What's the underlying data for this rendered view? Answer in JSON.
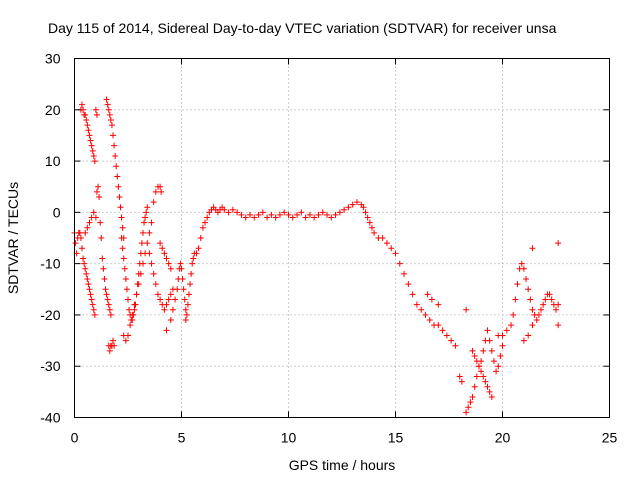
{
  "chart_data": {
    "type": "scatter",
    "title": "Day 115 of 2014, Sidereal Day-to-day VTEC variation (SDTVAR) for receiver unsa",
    "xlabel": "GPS time / hours",
    "ylabel": "SDTVAR / TECUs",
    "xlim": [
      0,
      25
    ],
    "ylim": [
      -40,
      30
    ],
    "xticks": [
      "0",
      "5",
      "10",
      "15",
      "20",
      "25"
    ],
    "yticks": [
      "-40",
      "-30",
      "-20",
      "-10",
      "0",
      "10",
      "20",
      "30"
    ],
    "grid": true,
    "marker": "+",
    "color": "#ff0000",
    "series": [
      {
        "name": "SDTVAR",
        "points": [
          [
            0.0,
            -4
          ],
          [
            0.05,
            -6
          ],
          [
            0.1,
            -8
          ],
          [
            0.15,
            -5
          ],
          [
            0.2,
            -4
          ],
          [
            0.25,
            -4
          ],
          [
            0.3,
            -5
          ],
          [
            0.35,
            -7
          ],
          [
            0.4,
            -9
          ],
          [
            0.45,
            -10
          ],
          [
            0.5,
            -11
          ],
          [
            0.55,
            -12
          ],
          [
            0.6,
            -13
          ],
          [
            0.65,
            -14
          ],
          [
            0.7,
            -15
          ],
          [
            0.75,
            -16
          ],
          [
            0.8,
            -17
          ],
          [
            0.85,
            -18
          ],
          [
            0.9,
            -19
          ],
          [
            0.95,
            -20
          ],
          [
            0.3,
            20
          ],
          [
            0.35,
            21
          ],
          [
            0.4,
            20
          ],
          [
            0.45,
            19
          ],
          [
            0.5,
            19
          ],
          [
            0.55,
            18
          ],
          [
            0.6,
            17
          ],
          [
            0.65,
            16
          ],
          [
            0.7,
            15
          ],
          [
            0.75,
            14
          ],
          [
            0.8,
            13
          ],
          [
            0.85,
            12
          ],
          [
            0.9,
            11
          ],
          [
            0.95,
            10
          ],
          [
            1.0,
            20
          ],
          [
            1.05,
            19
          ],
          [
            0.5,
            -4
          ],
          [
            0.6,
            -3
          ],
          [
            0.7,
            -2
          ],
          [
            0.8,
            -1
          ],
          [
            0.9,
            0
          ],
          [
            1.0,
            -1
          ],
          [
            1.05,
            4
          ],
          [
            1.1,
            5
          ],
          [
            1.15,
            3
          ],
          [
            1.2,
            -2
          ],
          [
            1.25,
            -5
          ],
          [
            1.3,
            -9
          ],
          [
            1.35,
            -11
          ],
          [
            1.4,
            -13
          ],
          [
            1.45,
            -15
          ],
          [
            1.5,
            -16
          ],
          [
            1.55,
            -17
          ],
          [
            1.6,
            -18
          ],
          [
            1.65,
            -19
          ],
          [
            1.7,
            -20
          ],
          [
            1.5,
            22
          ],
          [
            1.55,
            21
          ],
          [
            1.6,
            20
          ],
          [
            1.65,
            19
          ],
          [
            1.7,
            18
          ],
          [
            1.75,
            17
          ],
          [
            1.8,
            15
          ],
          [
            1.85,
            13
          ],
          [
            1.9,
            11
          ],
          [
            1.95,
            9
          ],
          [
            2.0,
            7
          ],
          [
            2.05,
            5
          ],
          [
            2.1,
            3
          ],
          [
            2.15,
            1
          ],
          [
            2.2,
            -1
          ],
          [
            2.25,
            -3
          ],
          [
            2.3,
            -5
          ],
          [
            1.6,
            -26
          ],
          [
            1.65,
            -27
          ],
          [
            1.7,
            -26
          ],
          [
            1.75,
            -26
          ],
          [
            1.8,
            -25
          ],
          [
            1.85,
            -26
          ],
          [
            2.2,
            -5
          ],
          [
            2.25,
            -7
          ],
          [
            2.3,
            -9
          ],
          [
            2.35,
            -11
          ],
          [
            2.4,
            -13
          ],
          [
            2.45,
            -15
          ],
          [
            2.5,
            -17
          ],
          [
            2.55,
            -19
          ],
          [
            2.6,
            -20
          ],
          [
            2.65,
            -21
          ],
          [
            2.7,
            -21
          ],
          [
            2.75,
            -20
          ],
          [
            2.8,
            -19
          ],
          [
            2.85,
            -18
          ],
          [
            2.9,
            -16
          ],
          [
            2.95,
            -14
          ],
          [
            3.0,
            -12
          ],
          [
            3.05,
            -10
          ],
          [
            3.1,
            -8
          ],
          [
            3.15,
            -6
          ],
          [
            3.2,
            -4
          ],
          [
            3.25,
            -2
          ],
          [
            3.3,
            -1
          ],
          [
            3.35,
            0
          ],
          [
            3.4,
            1
          ],
          [
            2.3,
            -24
          ],
          [
            2.4,
            -25
          ],
          [
            2.5,
            -24
          ],
          [
            2.6,
            -22
          ],
          [
            2.7,
            -20
          ],
          [
            2.8,
            -18
          ],
          [
            2.9,
            -16
          ],
          [
            3.0,
            -14
          ],
          [
            3.1,
            -12
          ],
          [
            3.2,
            -10
          ],
          [
            3.3,
            -8
          ],
          [
            3.4,
            -6
          ],
          [
            3.5,
            -4
          ],
          [
            3.6,
            -2
          ],
          [
            3.7,
            2
          ],
          [
            3.8,
            4
          ],
          [
            3.9,
            5
          ],
          [
            4.0,
            5
          ],
          [
            4.05,
            4
          ],
          [
            3.5,
            -8
          ],
          [
            3.6,
            -10
          ],
          [
            3.7,
            -12
          ],
          [
            3.8,
            -14
          ],
          [
            3.9,
            -16
          ],
          [
            4.0,
            -17
          ],
          [
            4.1,
            -18
          ],
          [
            4.2,
            -19
          ],
          [
            4.3,
            -18
          ],
          [
            4.4,
            -17
          ],
          [
            4.5,
            -16
          ],
          [
            4.6,
            -15
          ],
          [
            4.3,
            -23
          ],
          [
            4.5,
            -21
          ],
          [
            4.6,
            -19
          ],
          [
            4.7,
            -17
          ],
          [
            4.8,
            -15
          ],
          [
            4.85,
            -13
          ],
          [
            4.9,
            -11
          ],
          [
            4.95,
            -10
          ],
          [
            5.0,
            -11
          ],
          [
            5.05,
            -13
          ],
          [
            5.1,
            -15
          ],
          [
            5.15,
            -17
          ],
          [
            5.2,
            -19
          ],
          [
            4.0,
            -6
          ],
          [
            4.1,
            -7
          ],
          [
            4.2,
            -8
          ],
          [
            4.3,
            -9
          ],
          [
            4.4,
            -10
          ],
          [
            4.5,
            -11
          ],
          [
            5.2,
            -21
          ],
          [
            5.25,
            -20
          ],
          [
            5.3,
            -18
          ],
          [
            5.35,
            -16
          ],
          [
            5.4,
            -14
          ],
          [
            5.45,
            -12
          ],
          [
            5.5,
            -10
          ],
          [
            5.55,
            -9
          ],
          [
            5.6,
            -8
          ],
          [
            5.7,
            -8
          ],
          [
            5.8,
            -7
          ],
          [
            5.9,
            -5
          ],
          [
            6.0,
            -3
          ],
          [
            6.1,
            -2
          ],
          [
            6.2,
            -1
          ],
          [
            6.3,
            0
          ],
          [
            6.4,
            0.5
          ],
          [
            6.5,
            1
          ],
          [
            6.6,
            0.5
          ],
          [
            6.7,
            0
          ],
          [
            6.8,
            0.5
          ],
          [
            6.9,
            1
          ],
          [
            7.0,
            0.5
          ],
          [
            7.2,
            0
          ],
          [
            7.4,
            0.5
          ],
          [
            7.6,
            0
          ],
          [
            7.8,
            -0.5
          ],
          [
            8.0,
            -1
          ],
          [
            8.2,
            -0.5
          ],
          [
            8.4,
            -1
          ],
          [
            8.6,
            -0.5
          ],
          [
            8.8,
            0
          ],
          [
            9.0,
            -1
          ],
          [
            9.2,
            -0.5
          ],
          [
            9.4,
            -1
          ],
          [
            9.6,
            -0.5
          ],
          [
            9.8,
            0
          ],
          [
            10.0,
            -0.5
          ],
          [
            10.2,
            -1
          ],
          [
            10.4,
            -0.5
          ],
          [
            10.6,
            0
          ],
          [
            10.8,
            -1
          ],
          [
            11.0,
            -0.5
          ],
          [
            11.2,
            -1
          ],
          [
            11.4,
            -0.5
          ],
          [
            11.6,
            0
          ],
          [
            11.8,
            -0.5
          ],
          [
            12.0,
            -1
          ],
          [
            12.2,
            -0.5
          ],
          [
            12.4,
            0
          ],
          [
            12.6,
            0.5
          ],
          [
            12.8,
            1
          ],
          [
            13.0,
            1.5
          ],
          [
            13.2,
            2
          ],
          [
            13.4,
            1.5
          ],
          [
            13.5,
            1
          ],
          [
            13.6,
            0
          ],
          [
            13.7,
            -1
          ],
          [
            13.8,
            -2
          ],
          [
            13.9,
            -3
          ],
          [
            14.0,
            -4
          ],
          [
            14.2,
            -5
          ],
          [
            14.4,
            -5
          ],
          [
            14.6,
            -6
          ],
          [
            14.8,
            -7
          ],
          [
            15.0,
            -8
          ],
          [
            15.2,
            -10
          ],
          [
            15.4,
            -12
          ],
          [
            15.6,
            -14
          ],
          [
            15.8,
            -16
          ],
          [
            16.0,
            -18
          ],
          [
            16.2,
            -19
          ],
          [
            16.4,
            -20
          ],
          [
            16.6,
            -21
          ],
          [
            16.8,
            -22
          ],
          [
            17.0,
            -22
          ],
          [
            17.2,
            -23
          ],
          [
            17.4,
            -24
          ],
          [
            17.6,
            -25
          ],
          [
            17.8,
            -26
          ],
          [
            18.0,
            -32
          ],
          [
            18.1,
            -33
          ],
          [
            18.3,
            -39
          ],
          [
            18.4,
            -38
          ],
          [
            18.5,
            -37
          ],
          [
            18.6,
            -36
          ],
          [
            18.7,
            -34
          ],
          [
            18.8,
            -32
          ],
          [
            18.9,
            -30
          ],
          [
            19.0,
            -29
          ],
          [
            19.1,
            -27
          ],
          [
            19.2,
            -25
          ],
          [
            19.3,
            -23
          ],
          [
            19.4,
            -25
          ],
          [
            19.5,
            -27
          ],
          [
            19.6,
            -29
          ],
          [
            19.7,
            -31
          ],
          [
            19.8,
            -30
          ],
          [
            19.9,
            -28
          ],
          [
            20.0,
            -26
          ],
          [
            18.6,
            -27
          ],
          [
            18.7,
            -28
          ],
          [
            18.8,
            -29
          ],
          [
            18.9,
            -30
          ],
          [
            19.0,
            -31
          ],
          [
            19.1,
            -32
          ],
          [
            19.2,
            -33
          ],
          [
            19.3,
            -34
          ],
          [
            19.4,
            -35
          ],
          [
            19.5,
            -36
          ],
          [
            18.3,
            -19
          ],
          [
            16.5,
            -16
          ],
          [
            16.7,
            -17
          ],
          [
            17.0,
            -18
          ],
          [
            19.8,
            -24
          ],
          [
            20.0,
            -24
          ],
          [
            20.2,
            -23
          ],
          [
            20.4,
            -22
          ],
          [
            20.5,
            -20
          ],
          [
            20.6,
            -17
          ],
          [
            20.7,
            -14
          ],
          [
            20.8,
            -11
          ],
          [
            20.9,
            -10
          ],
          [
            21.0,
            -11
          ],
          [
            21.1,
            -13
          ],
          [
            21.2,
            -15
          ],
          [
            21.3,
            -17
          ],
          [
            21.4,
            -19
          ],
          [
            21.5,
            -20
          ],
          [
            21.6,
            -21
          ],
          [
            21.7,
            -20
          ],
          [
            21.8,
            -19
          ],
          [
            21.9,
            -18
          ],
          [
            22.0,
            -17
          ],
          [
            22.1,
            -16
          ],
          [
            22.2,
            -16
          ],
          [
            22.3,
            -17
          ],
          [
            22.4,
            -18
          ],
          [
            22.5,
            -19
          ],
          [
            21.4,
            -7
          ],
          [
            22.6,
            -6
          ],
          [
            22.6,
            -22
          ],
          [
            22.6,
            -18
          ],
          [
            21.0,
            -25
          ],
          [
            21.2,
            -24
          ],
          [
            21.4,
            -22
          ]
        ]
      }
    ]
  }
}
